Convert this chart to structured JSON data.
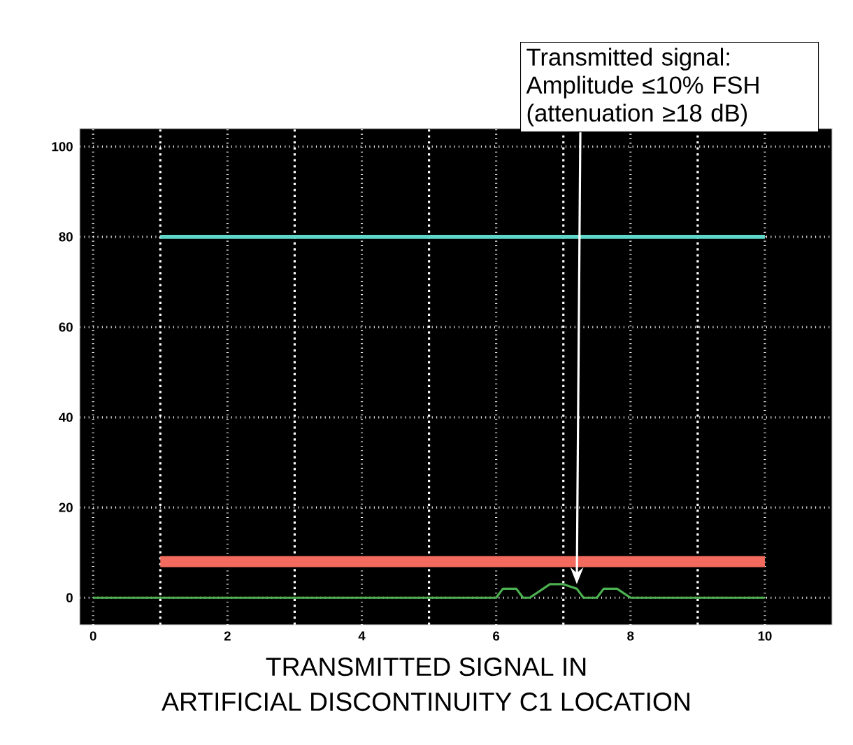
{
  "chart_data": {
    "type": "line",
    "title": "TRANSMITTED SIGNAL IN",
    "subtitle": "ARTIFICIAL DISCONTINUITY C1 LOCATION",
    "xlim": [
      -0.2,
      11
    ],
    "ylim": [
      -6,
      104
    ],
    "xticks": [
      0,
      2,
      4,
      6,
      8,
      10
    ],
    "yticks": [
      0,
      20,
      40,
      60,
      80,
      100
    ],
    "grid": true,
    "marker": "none",
    "line_style": "solid",
    "series": [
      {
        "color": "#5ed6c8",
        "x": [
          1,
          10
        ],
        "values": [
          80,
          80
        ]
      },
      {
        "color": "#f26b5e",
        "x": [
          1,
          10
        ],
        "values": [
          8,
          8
        ]
      },
      {
        "color": "#4caf50",
        "x": [
          0,
          6,
          6.1,
          6.3,
          6.4,
          6.5,
          6.7,
          6.8,
          7.0,
          7.2,
          7.3,
          7.5,
          7.6,
          7.8,
          7.9,
          8,
          10
        ],
        "values": [
          0,
          0,
          2,
          2,
          0,
          0,
          2,
          3,
          3,
          2,
          0,
          0,
          2,
          2,
          1,
          0,
          0
        ]
      }
    ],
    "annotations": [
      {
        "text": "Transmitted signal: Amplitude ≤10% FSH (attenuation ≥18 dB)",
        "x": 7.2,
        "y": 3
      }
    ]
  }
}
